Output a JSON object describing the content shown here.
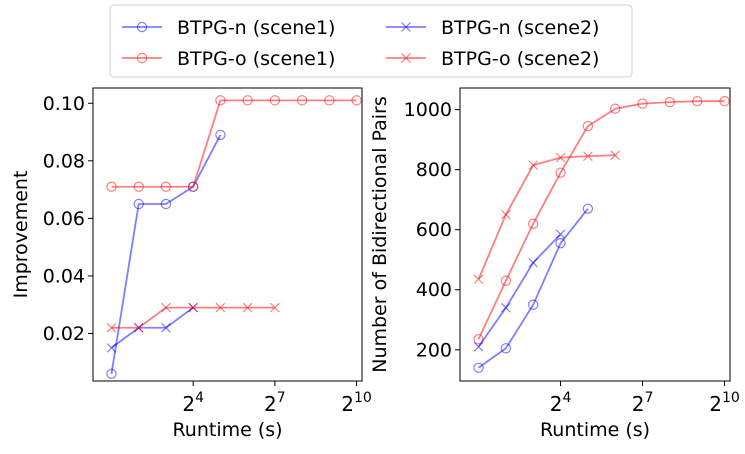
{
  "chart_data": [
    {
      "type": "line",
      "xlabel": "Runtime (s)",
      "ylabel": "Improvement",
      "xscale": "log2",
      "xlim": [
        1.25,
        1176
      ],
      "ylim": [
        0.0035,
        0.1053
      ],
      "xticks": [
        16,
        128,
        1024
      ],
      "xtick_labels": [
        {
          "base": "2",
          "exp": "4"
        },
        {
          "base": "2",
          "exp": "7"
        },
        {
          "base": "2",
          "exp": "10"
        }
      ],
      "yticks": [
        0.02,
        0.04,
        0.06,
        0.08,
        0.1
      ],
      "ytick_labels": [
        "0.02",
        "0.04",
        "0.06",
        "0.08",
        "0.10"
      ],
      "grid": false,
      "series": [
        {
          "name": "BTPG-n (scene1)",
          "color": "#0000ff",
          "marker": "circle",
          "x": [
            2,
            4,
            8,
            16,
            32
          ],
          "y": [
            0.006,
            0.065,
            0.065,
            0.071,
            0.089
          ]
        },
        {
          "name": "BTPG-o (scene1)",
          "color": "#ff0000",
          "marker": "circle",
          "x": [
            2,
            4,
            8,
            16,
            32,
            64,
            128,
            256,
            512,
            1024
          ],
          "y": [
            0.071,
            0.071,
            0.071,
            0.071,
            0.101,
            0.101,
            0.101,
            0.101,
            0.101,
            0.101
          ]
        },
        {
          "name": "BTPG-n (scene2)",
          "color": "#0000ff",
          "marker": "x",
          "x": [
            2,
            4,
            8,
            16
          ],
          "y": [
            0.015,
            0.022,
            0.022,
            0.029
          ]
        },
        {
          "name": "BTPG-o (scene2)",
          "color": "#ff0000",
          "marker": "x",
          "x": [
            2,
            4,
            8,
            16,
            32,
            64,
            128
          ],
          "y": [
            0.022,
            0.022,
            0.029,
            0.029,
            0.029,
            0.029,
            0.029
          ]
        }
      ]
    },
    {
      "type": "line",
      "xlabel": "Runtime (s)",
      "ylabel": "Number of Bidirectional Pairs",
      "xscale": "log2",
      "xlim": [
        1.25,
        1176
      ],
      "ylim": [
        96,
        1072
      ],
      "xticks": [
        16,
        128,
        1024
      ],
      "xtick_labels": [
        {
          "base": "2",
          "exp": "4"
        },
        {
          "base": "2",
          "exp": "7"
        },
        {
          "base": "2",
          "exp": "10"
        }
      ],
      "yticks": [
        200,
        400,
        600,
        800,
        1000
      ],
      "ytick_labels": [
        "200",
        "400",
        "600",
        "800",
        "1000"
      ],
      "grid": false,
      "series": [
        {
          "name": "BTPG-n (scene1)",
          "color": "#0000ff",
          "marker": "circle",
          "x": [
            2,
            4,
            8,
            16,
            32
          ],
          "y": [
            140,
            205,
            350,
            555,
            670
          ]
        },
        {
          "name": "BTPG-o (scene1)",
          "color": "#ff0000",
          "marker": "circle",
          "x": [
            2,
            4,
            8,
            16,
            32,
            64,
            128,
            256,
            512,
            1024
          ],
          "y": [
            235,
            430,
            620,
            790,
            945,
            1003,
            1020,
            1025,
            1028,
            1028
          ]
        },
        {
          "name": "BTPG-n (scene2)",
          "color": "#0000ff",
          "marker": "x",
          "x": [
            2,
            4,
            8,
            16
          ],
          "y": [
            210,
            340,
            490,
            585
          ]
        },
        {
          "name": "BTPG-o (scene2)",
          "color": "#ff0000",
          "marker": "x",
          "x": [
            2,
            4,
            8,
            16,
            32,
            64
          ],
          "y": [
            435,
            650,
            815,
            840,
            845,
            848
          ]
        }
      ]
    }
  ],
  "legend": {
    "placement": "top-center",
    "entries": [
      {
        "label": "BTPG-n (scene1)",
        "color": "#0000ff",
        "marker": "circle"
      },
      {
        "label": "BTPG-n (scene2)",
        "color": "#0000ff",
        "marker": "x"
      },
      {
        "label": "BTPG-o (scene1)",
        "color": "#ff0000",
        "marker": "circle"
      },
      {
        "label": "BTPG-o (scene2)",
        "color": "#ff0000",
        "marker": "x"
      }
    ]
  }
}
